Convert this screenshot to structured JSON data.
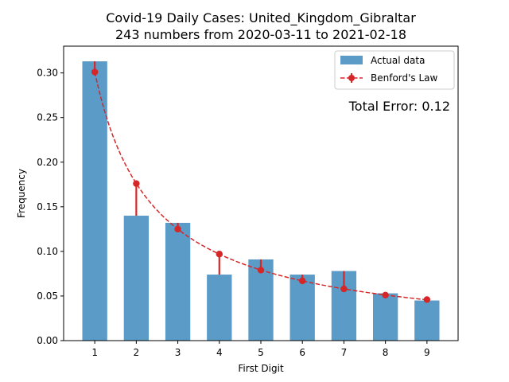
{
  "chart_data": {
    "type": "bar",
    "title_line1": "Covid-19 Daily Cases: United_Kingdom_Gibraltar",
    "title_line2": "243 numbers from 2020-03-11 to 2021-02-18",
    "xlabel": "First Digit",
    "ylabel": "Frequency",
    "categories": [
      "1",
      "2",
      "3",
      "4",
      "5",
      "6",
      "7",
      "8",
      "9"
    ],
    "x": [
      1,
      2,
      3,
      4,
      5,
      6,
      7,
      8,
      9
    ],
    "ylim": [
      0,
      0.33
    ],
    "yticks": [
      0.0,
      0.05,
      0.1,
      0.15,
      0.2,
      0.25,
      0.3
    ],
    "ytick_labels": [
      "0.00",
      "0.05",
      "0.10",
      "0.15",
      "0.20",
      "0.25",
      "0.30"
    ],
    "series": [
      {
        "name": "Actual data",
        "style": "bar",
        "color": "#5b9bc8",
        "values": [
          0.313,
          0.14,
          0.132,
          0.074,
          0.091,
          0.074,
          0.078,
          0.053,
          0.045
        ]
      },
      {
        "name": "Benford's Law",
        "style": "line-dashed-markers",
        "color": "#d62728",
        "values": [
          0.301,
          0.176,
          0.125,
          0.097,
          0.079,
          0.067,
          0.058,
          0.051,
          0.046
        ]
      }
    ],
    "annotation": {
      "text": "Total Error: 0.12",
      "color": "#d62728"
    },
    "legend": "top-right",
    "grid": false
  }
}
